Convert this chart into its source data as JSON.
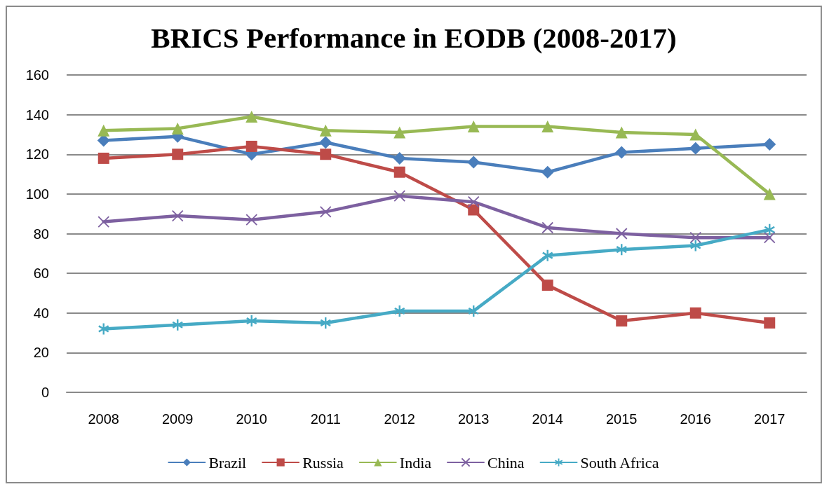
{
  "chart_data": {
    "type": "line",
    "title": "BRICS Performance in EODB (2008-2017)",
    "categories": [
      "2008",
      "2009",
      "2010",
      "2011",
      "2012",
      "2013",
      "2014",
      "2015",
      "2016",
      "2017"
    ],
    "series": [
      {
        "name": "Brazil",
        "color": "#4a7ebb",
        "marker": "diamond",
        "values": [
          127,
          129,
          120,
          126,
          118,
          116,
          111,
          121,
          123,
          125
        ]
      },
      {
        "name": "Russia",
        "color": "#be4b48",
        "marker": "square",
        "values": [
          118,
          120,
          124,
          120,
          111,
          92,
          54,
          36,
          40,
          35
        ]
      },
      {
        "name": "India",
        "color": "#98b954",
        "marker": "triangle",
        "values": [
          132,
          133,
          139,
          132,
          131,
          134,
          134,
          131,
          130,
          100
        ]
      },
      {
        "name": "China",
        "color": "#7d60a0",
        "marker": "cross",
        "values": [
          86,
          89,
          87,
          91,
          99,
          96,
          83,
          80,
          78,
          78
        ]
      },
      {
        "name": "South Africa",
        "color": "#46aac5",
        "marker": "star",
        "values": [
          32,
          34,
          36,
          35,
          41,
          41,
          69,
          72,
          74,
          82
        ]
      }
    ],
    "ylim": [
      0,
      160
    ],
    "yticks": [
      0,
      20,
      40,
      60,
      80,
      100,
      120,
      140,
      160
    ],
    "grid": "y",
    "legend": "bottom"
  }
}
